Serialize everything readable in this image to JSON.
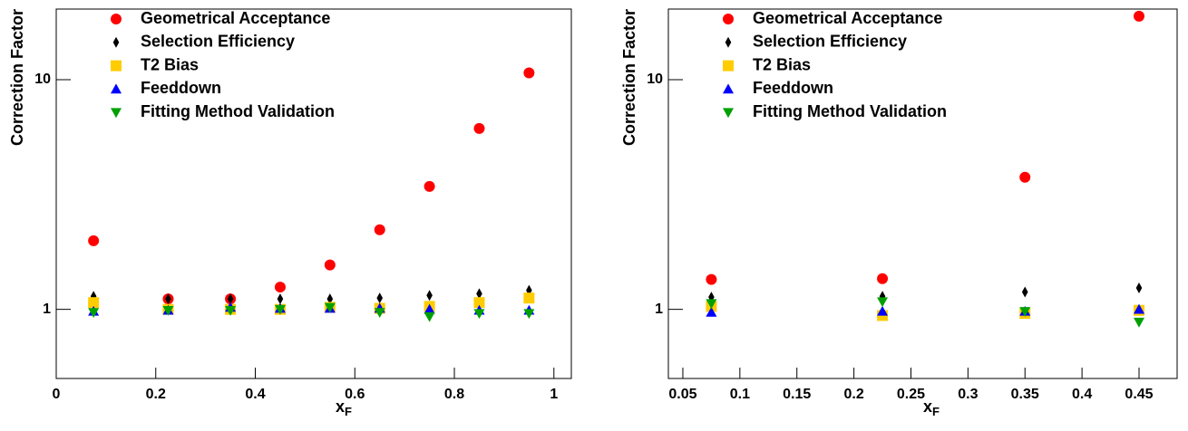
{
  "chart_data": [
    {
      "type": "scatter",
      "y_label": "Correction Factor",
      "x_label": "x",
      "x_label_sub": "F",
      "log_y": true,
      "legend": "top-left",
      "xlim": [
        0,
        1.035
      ],
      "ylim": [
        0.5,
        20.3
      ],
      "xticks": [
        0,
        0.2,
        0.4,
        0.6,
        0.8,
        1
      ],
      "yticks": [
        1,
        10
      ],
      "x": [
        0.075,
        0.225,
        0.35,
        0.45,
        0.55,
        0.65,
        0.75,
        0.85,
        0.95
      ],
      "series": [
        {
          "name": "Geometrical Acceptance",
          "color": "#ff0000",
          "marker": "circle",
          "values": [
            1.99,
            1.11,
            1.11,
            1.25,
            1.56,
            2.22,
            3.43,
            6.13,
            10.7
          ]
        },
        {
          "name": "Selection Efficiency",
          "color": "#000000",
          "marker": "diamond",
          "values": [
            1.14,
            1.11,
            1.11,
            1.11,
            1.11,
            1.12,
            1.15,
            1.17,
            1.21
          ]
        },
        {
          "name": "T2 Bias",
          "color": "#ffcc00",
          "marker": "square",
          "values": [
            1.07,
            1.0,
            1.0,
            1.0,
            1.02,
            1.01,
            1.03,
            1.07,
            1.12
          ]
        },
        {
          "name": "Feeddown",
          "color": "#0000ff",
          "marker": "triangle-up",
          "values": [
            0.98,
            0.99,
            1.02,
            1.01,
            1.01,
            1.01,
            1.0,
            0.99,
            0.99
          ]
        },
        {
          "name": "Fitting Method Validation",
          "color": "#00a000",
          "marker": "triangle-down",
          "values": [
            0.97,
            0.99,
            0.99,
            1.0,
            1.02,
            0.97,
            0.93,
            0.96,
            0.96
          ]
        }
      ]
    },
    {
      "type": "scatter",
      "y_label": "Correction Factor",
      "x_label": "x",
      "x_label_sub": "F",
      "log_y": true,
      "legend": "top-left",
      "xlim": [
        0.0373,
        0.4834
      ],
      "ylim": [
        0.5,
        20.3
      ],
      "xticks": [
        0.05,
        0.1,
        0.15,
        0.2,
        0.25,
        0.3,
        0.35,
        0.4,
        0.45
      ],
      "yticks": [
        1,
        10
      ],
      "x": [
        0.075,
        0.225,
        0.35,
        0.45
      ],
      "series": [
        {
          "name": "Geometrical Acceptance",
          "color": "#ff0000",
          "marker": "circle",
          "values": [
            1.35,
            1.36,
            3.76,
            18.9
          ]
        },
        {
          "name": "Selection Efficiency",
          "color": "#000000",
          "marker": "diamond",
          "values": [
            1.13,
            1.14,
            1.19,
            1.24
          ]
        },
        {
          "name": "T2 Bias",
          "color": "#ffcc00",
          "marker": "square",
          "values": [
            1.03,
            0.94,
            0.96,
            0.99
          ]
        },
        {
          "name": "Feeddown",
          "color": "#0000ff",
          "marker": "triangle-up",
          "values": [
            0.97,
            0.98,
            0.98,
            1.0
          ]
        },
        {
          "name": "Fitting Method Validation",
          "color": "#00a000",
          "marker": "triangle-down",
          "values": [
            1.06,
            1.08,
            0.98,
            0.88
          ]
        }
      ]
    }
  ]
}
